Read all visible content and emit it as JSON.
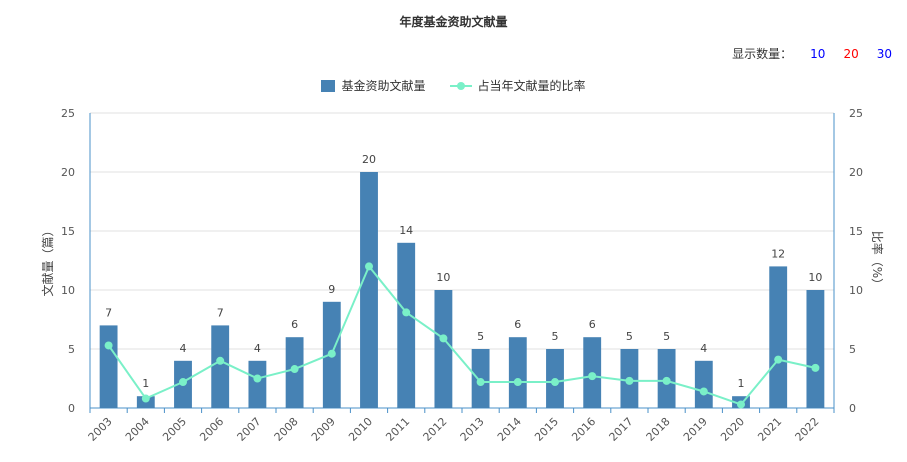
{
  "title": "年度基金资助文献量",
  "count_selector": {
    "label": "显示数量：",
    "options": [
      {
        "label": "10",
        "color": "#0000ff"
      },
      {
        "label": "20",
        "color": "#ff0000"
      },
      {
        "label": "30",
        "color": "#0000ff"
      }
    ]
  },
  "colors": {
    "bar": "#4682b4",
    "line": "#7af0c8",
    "axis": "#4a90c8",
    "grid": "#e0e0e0"
  },
  "chart_data": {
    "type": "bar",
    "title": "年度基金资助文献量",
    "categories": [
      "2003",
      "2004",
      "2005",
      "2006",
      "2007",
      "2008",
      "2009",
      "2010",
      "2011",
      "2012",
      "2013",
      "2014",
      "2015",
      "2016",
      "2017",
      "2018",
      "2019",
      "2020",
      "2021",
      "2022"
    ],
    "series": [
      {
        "name": "基金资助文献量",
        "type": "bar",
        "axis": "left",
        "values": [
          7,
          1,
          4,
          7,
          4,
          6,
          9,
          20,
          14,
          10,
          5,
          6,
          5,
          6,
          5,
          5,
          4,
          1,
          12,
          10
        ]
      },
      {
        "name": "占当年文献量的比率",
        "type": "line",
        "axis": "right",
        "values": [
          5.3,
          0.8,
          2.2,
          4.0,
          2.5,
          3.3,
          4.6,
          12.0,
          8.1,
          5.9,
          2.2,
          2.2,
          2.2,
          2.7,
          2.3,
          2.3,
          1.4,
          0.3,
          4.1,
          3.4
        ]
      }
    ],
    "ylabel_left": "文献量（篇）",
    "ylabel_right": "比率（%）",
    "ylim_left": [
      0,
      25
    ],
    "ylim_right": [
      0,
      25
    ],
    "yticks": [
      0,
      5,
      10,
      15,
      20,
      25
    ],
    "grid": true,
    "legend_position": "top-center"
  }
}
